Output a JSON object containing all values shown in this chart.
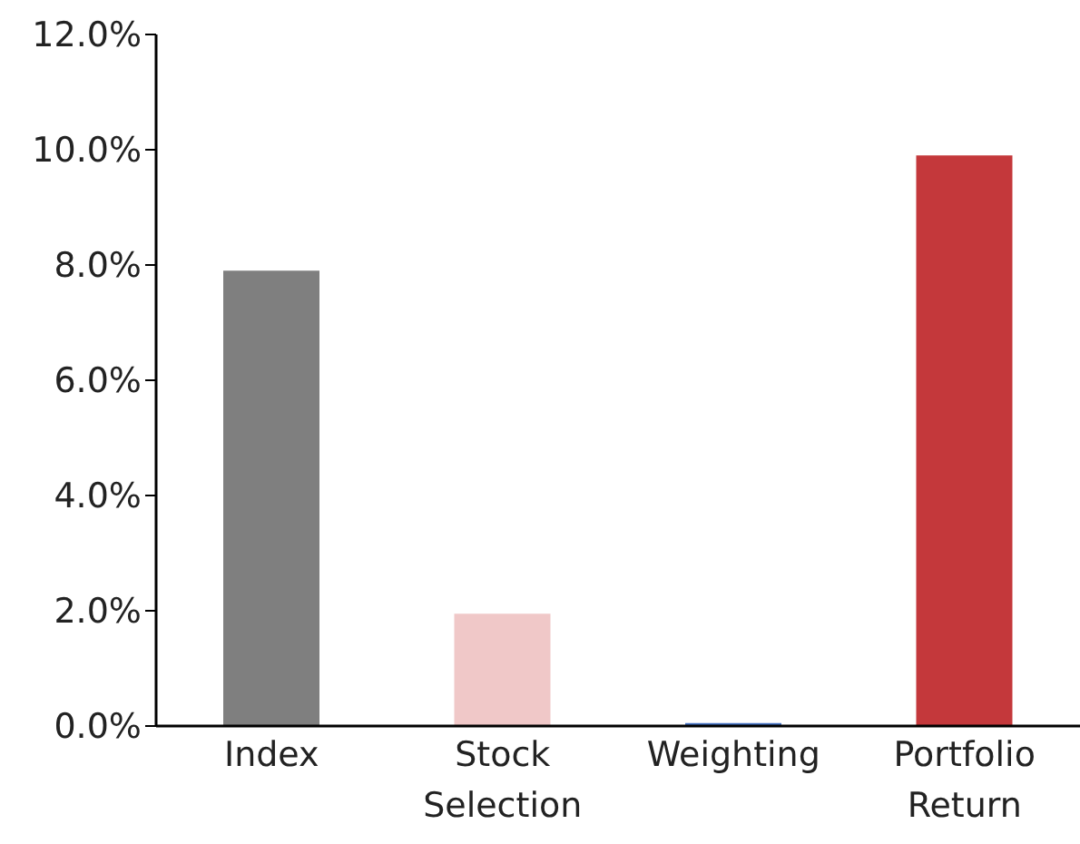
{
  "chart_data": {
    "type": "bar",
    "categories": [
      "Index",
      "Stock Selection",
      "Weighting",
      "Portfolio Return"
    ],
    "values": [
      7.9,
      1.95,
      0.05,
      9.9
    ],
    "colors": [
      "#7f7f7f",
      "#f0c8c8",
      "#4472c4",
      "#c4383b"
    ],
    "ylim": [
      0,
      12
    ],
    "yticks": [
      {
        "value": 0,
        "label": "0.0%"
      },
      {
        "value": 2,
        "label": "2.0%"
      },
      {
        "value": 4,
        "label": "4.0%"
      },
      {
        "value": 6,
        "label": "6.0%"
      },
      {
        "value": 8,
        "label": "8.0%"
      },
      {
        "value": 10,
        "label": "10.0%"
      },
      {
        "value": 12,
        "label": "12.0%"
      }
    ],
    "grid": false,
    "legend": false
  }
}
